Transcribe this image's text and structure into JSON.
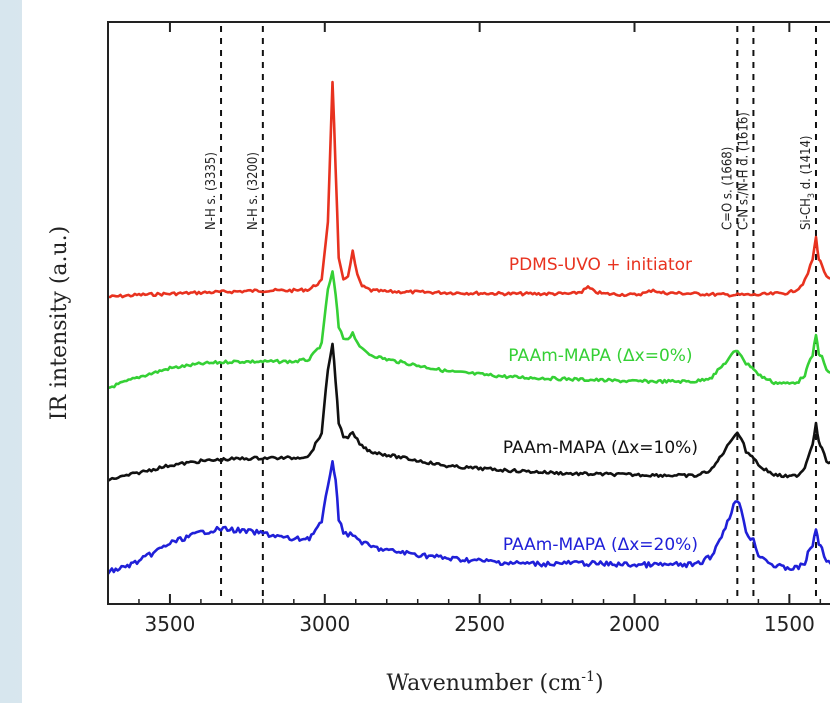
{
  "chart_data": {
    "type": "line",
    "xlabel": "Wavenumber  (cm",
    "xlabel_sup": "-1",
    "xlabel_close": ")",
    "ylabel": "IR intensity  (a.u.)",
    "xlim": [
      3700,
      1330
    ],
    "x_reversed": true,
    "x_ticks": [
      3500,
      3000,
      2500,
      2000,
      1500
    ],
    "y_ticks_shown": false,
    "grid": false,
    "reference_lines": [
      {
        "x": 3335,
        "label": "N-H s. (3335)"
      },
      {
        "x": 3200,
        "label": "N-H s. (3200)"
      },
      {
        "x": 1668,
        "label": "C=O s. (1668)"
      },
      {
        "x": 1616,
        "label": "C-N s./N-H d. (1616)"
      },
      {
        "x": 1414,
        "label": "Si-CH",
        "label_sub": "3",
        "label_tail": " d. (1414)"
      }
    ],
    "series": [
      {
        "name": "PDMS-UVO + initiator",
        "color": "#e8321f",
        "x": [
          3700,
          3600,
          3500,
          3400,
          3300,
          3200,
          3100,
          3050,
          3010,
          2990,
          2975,
          2965,
          2955,
          2940,
          2925,
          2910,
          2895,
          2880,
          2850,
          2800,
          2600,
          2400,
          2200,
          2170,
          2150,
          2130,
          2100,
          2000,
          1960,
          1940,
          1920,
          1800,
          1700,
          1600,
          1500,
          1470,
          1450,
          1440,
          1425,
          1414,
          1405,
          1395,
          1380,
          1340
        ],
        "y": [
          0.0,
          0.02,
          0.03,
          0.04,
          0.05,
          0.06,
          0.06,
          0.07,
          0.15,
          0.7,
          2.0,
          1.2,
          0.35,
          0.15,
          0.2,
          0.42,
          0.2,
          0.1,
          0.06,
          0.05,
          0.04,
          0.03,
          0.03,
          0.05,
          0.09,
          0.05,
          0.03,
          0.02,
          0.04,
          0.07,
          0.04,
          0.03,
          0.02,
          0.02,
          0.04,
          0.08,
          0.15,
          0.22,
          0.35,
          0.55,
          0.35,
          0.3,
          0.18,
          0.12
        ]
      },
      {
        "name": "PAAm-MAPA (Δx=0%)",
        "color": "#35d035",
        "x": [
          3700,
          3600,
          3500,
          3400,
          3300,
          3200,
          3100,
          3050,
          3010,
          2990,
          2975,
          2965,
          2955,
          2940,
          2925,
          2910,
          2895,
          2880,
          2850,
          2800,
          2600,
          2400,
          2200,
          2000,
          1800,
          1750,
          1700,
          1680,
          1668,
          1655,
          1640,
          1625,
          1616,
          1600,
          1550,
          1500,
          1470,
          1450,
          1440,
          1425,
          1414,
          1405,
          1395,
          1380,
          1340
        ],
        "y": [
          0.0,
          0.1,
          0.18,
          0.22,
          0.24,
          0.24,
          0.24,
          0.26,
          0.4,
          0.9,
          1.05,
          0.85,
          0.55,
          0.45,
          0.45,
          0.5,
          0.42,
          0.35,
          0.3,
          0.26,
          0.15,
          0.1,
          0.08,
          0.06,
          0.06,
          0.1,
          0.25,
          0.32,
          0.34,
          0.3,
          0.22,
          0.2,
          0.18,
          0.12,
          0.05,
          0.04,
          0.06,
          0.12,
          0.2,
          0.3,
          0.48,
          0.32,
          0.28,
          0.16,
          0.1
        ]
      },
      {
        "name": "PAAm-MAPA (Δx=10%)",
        "color": "#111111",
        "x": [
          3700,
          3600,
          3500,
          3400,
          3300,
          3200,
          3100,
          3050,
          3010,
          2990,
          2975,
          2965,
          2955,
          2940,
          2925,
          2910,
          2895,
          2880,
          2850,
          2800,
          2600,
          2400,
          2200,
          2000,
          1800,
          1750,
          1700,
          1680,
          1668,
          1655,
          1640,
          1625,
          1616,
          1600,
          1550,
          1500,
          1470,
          1450,
          1440,
          1425,
          1414,
          1405,
          1395,
          1380,
          1340
        ],
        "y": [
          0.0,
          0.07,
          0.14,
          0.18,
          0.2,
          0.21,
          0.21,
          0.23,
          0.45,
          1.05,
          1.3,
          0.95,
          0.55,
          0.4,
          0.4,
          0.45,
          0.38,
          0.32,
          0.27,
          0.24,
          0.13,
          0.09,
          0.06,
          0.05,
          0.04,
          0.1,
          0.32,
          0.42,
          0.45,
          0.4,
          0.27,
          0.24,
          0.22,
          0.14,
          0.05,
          0.03,
          0.05,
          0.12,
          0.22,
          0.34,
          0.55,
          0.36,
          0.3,
          0.18,
          0.12
        ]
      },
      {
        "name": "PAAm-MAPA (Δx=20%)",
        "color": "#2020d8",
        "x": [
          3700,
          3650,
          3600,
          3500,
          3400,
          3335,
          3300,
          3200,
          3100,
          3050,
          3010,
          2990,
          2975,
          2965,
          2955,
          2940,
          2925,
          2910,
          2895,
          2880,
          2850,
          2800,
          2600,
          2400,
          2300,
          2200,
          2000,
          1800,
          1750,
          1700,
          1680,
          1668,
          1655,
          1640,
          1625,
          1616,
          1600,
          1550,
          1500,
          1470,
          1450,
          1440,
          1425,
          1414,
          1405,
          1395,
          1380,
          1340
        ],
        "y": [
          0.0,
          0.05,
          0.12,
          0.32,
          0.44,
          0.48,
          0.47,
          0.43,
          0.36,
          0.38,
          0.55,
          0.95,
          1.25,
          1.0,
          0.6,
          0.45,
          0.42,
          0.4,
          0.38,
          0.33,
          0.28,
          0.24,
          0.15,
          0.1,
          0.09,
          0.1,
          0.08,
          0.08,
          0.18,
          0.55,
          0.75,
          0.78,
          0.7,
          0.45,
          0.38,
          0.35,
          0.2,
          0.07,
          0.04,
          0.05,
          0.1,
          0.2,
          0.3,
          0.48,
          0.32,
          0.25,
          0.12,
          0.08
        ]
      }
    ]
  }
}
